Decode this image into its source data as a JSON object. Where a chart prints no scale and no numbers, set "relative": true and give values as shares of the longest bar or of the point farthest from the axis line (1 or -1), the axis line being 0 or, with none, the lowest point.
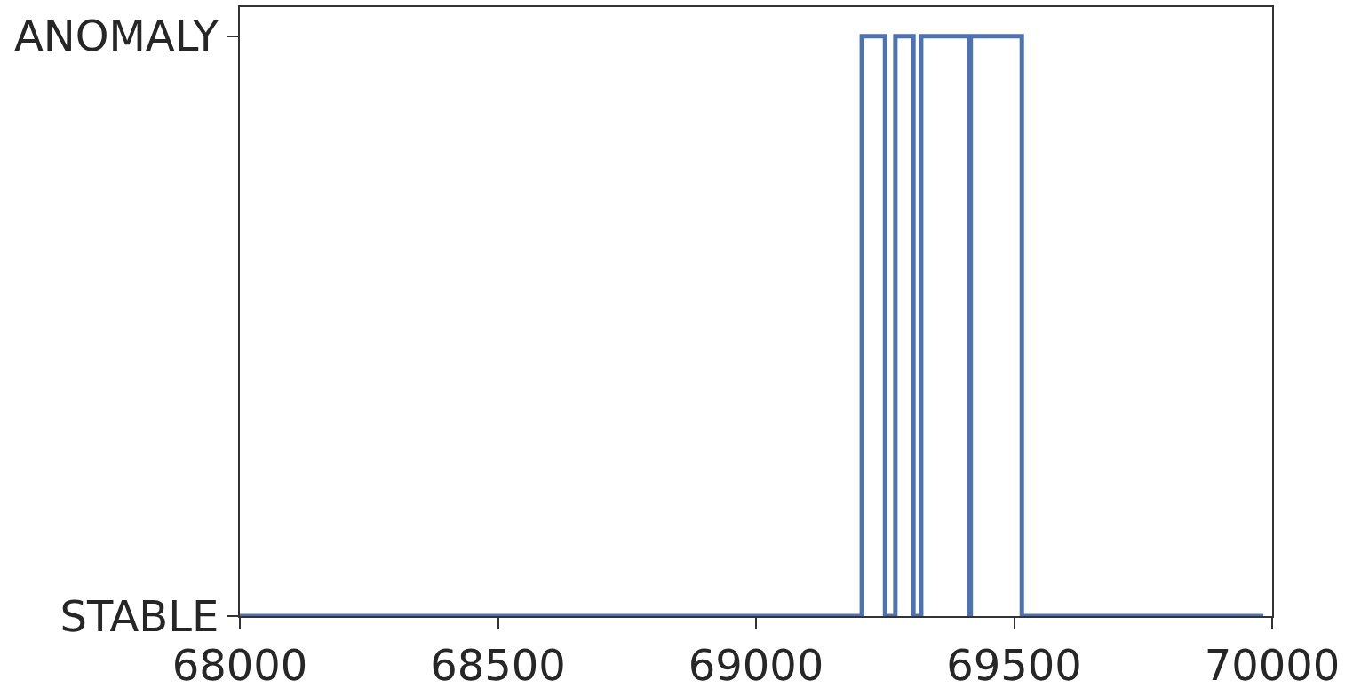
{
  "chart_data": {
    "type": "step",
    "relative": true,
    "y_categories": [
      "ANOMALY",
      "STABLE"
    ],
    "series": [
      {
        "color": "#4c72b0",
        "x": [
          68000,
          69205,
          69250,
          69270,
          69305,
          69320,
          69413,
          69416,
          69515,
          69983
        ],
        "values": [
          0,
          1,
          0,
          1,
          0,
          1,
          0,
          1,
          0,
          0
        ]
      }
    ],
    "xlim": [
      68000,
      70000
    ],
    "xticks": [
      68000,
      68500,
      69000,
      69500,
      70000
    ],
    "legend": false
  }
}
